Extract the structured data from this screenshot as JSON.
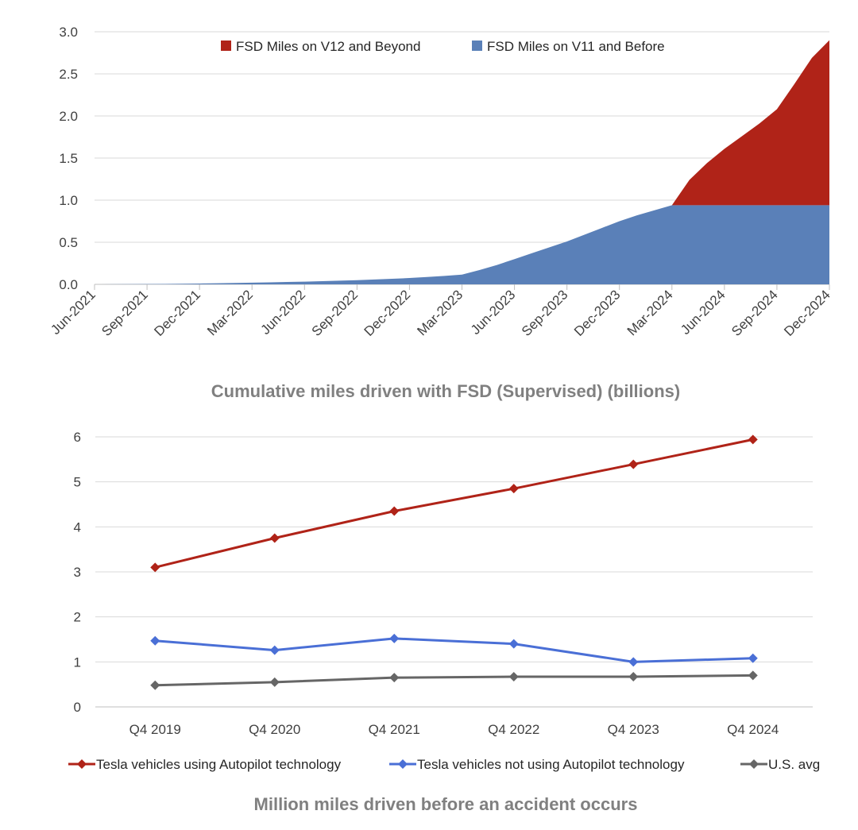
{
  "chart_data": [
    {
      "type": "area",
      "stacked": true,
      "title": "Cumulative miles driven with FSD (Supervised) (billions)",
      "ylim": [
        0,
        3.0
      ],
      "y_ticks": [
        "0.0",
        "0.5",
        "1.0",
        "1.5",
        "2.0",
        "2.5",
        "3.0"
      ],
      "x_tick_labels": [
        "Jun-2021",
        "Sep-2021",
        "Dec-2021",
        "Mar-2022",
        "Jun-2022",
        "Sep-2022",
        "Dec-2022",
        "Mar-2023",
        "Jun-2023",
        "Sep-2023",
        "Dec-2023",
        "Mar-2024",
        "Jun-2024",
        "Sep-2024",
        "Dec-2024"
      ],
      "x": [
        "Jun-2021",
        "Jul-2021",
        "Aug-2021",
        "Sep-2021",
        "Oct-2021",
        "Nov-2021",
        "Dec-2021",
        "Jan-2022",
        "Feb-2022",
        "Mar-2022",
        "Apr-2022",
        "May-2022",
        "Jun-2022",
        "Jul-2022",
        "Aug-2022",
        "Sep-2022",
        "Oct-2022",
        "Nov-2022",
        "Dec-2022",
        "Jan-2023",
        "Feb-2023",
        "Mar-2023",
        "Apr-2023",
        "May-2023",
        "Jun-2023",
        "Jul-2023",
        "Aug-2023",
        "Sep-2023",
        "Oct-2023",
        "Nov-2023",
        "Dec-2023",
        "Jan-2024",
        "Feb-2024",
        "Mar-2024",
        "Apr-2024",
        "May-2024",
        "Jun-2024",
        "Jul-2024",
        "Aug-2024",
        "Sep-2024",
        "Oct-2024",
        "Nov-2024",
        "Dec-2024"
      ],
      "legend_position": "top",
      "series": [
        {
          "name": "FSD Miles on V11 and Before",
          "color": "#5a80b8",
          "values": [
            0,
            0.001,
            0.002,
            0.003,
            0.005,
            0.007,
            0.01,
            0.013,
            0.016,
            0.02,
            0.024,
            0.028,
            0.032,
            0.038,
            0.044,
            0.05,
            0.058,
            0.066,
            0.075,
            0.087,
            0.1,
            0.115,
            0.17,
            0.23,
            0.3,
            0.37,
            0.44,
            0.51,
            0.59,
            0.67,
            0.75,
            0.82,
            0.88,
            0.94,
            0.94,
            0.94,
            0.94,
            0.94,
            0.94,
            0.94,
            0.94,
            0.94,
            0.94
          ]
        },
        {
          "name": "FSD Miles on V12 and Beyond",
          "color": "#b02318",
          "values": [
            0,
            0,
            0,
            0,
            0,
            0,
            0,
            0,
            0,
            0,
            0,
            0,
            0,
            0,
            0,
            0,
            0,
            0,
            0,
            0,
            0,
            0,
            0,
            0,
            0,
            0,
            0,
            0,
            0,
            0,
            0,
            0,
            0,
            0,
            0.3,
            0.5,
            0.67,
            0.82,
            0.97,
            1.14,
            1.44,
            1.75,
            1.96
          ]
        }
      ]
    },
    {
      "type": "line",
      "title": "Million miles driven before an accident occurs",
      "ylim": [
        0,
        6
      ],
      "y_ticks": [
        "0",
        "1",
        "2",
        "3",
        "4",
        "5",
        "6"
      ],
      "categories": [
        "Q4 2019",
        "Q4 2020",
        "Q4 2021",
        "Q4 2022",
        "Q4 2023",
        "Q4 2024"
      ],
      "legend_position": "bottom",
      "series": [
        {
          "name": "Tesla vehicles using Autopilot technology",
          "color": "#b02318",
          "values": [
            3.1,
            3.75,
            4.35,
            4.85,
            5.39,
            5.94
          ]
        },
        {
          "name": "Tesla vehicles not using Autopilot technology",
          "color": "#4a6fd6",
          "values": [
            1.47,
            1.26,
            1.52,
            1.4,
            1.0,
            1.08
          ]
        },
        {
          "name": "U.S. avg",
          "color": "#666666",
          "values": [
            0.48,
            0.55,
            0.65,
            0.67,
            0.67,
            0.7
          ]
        }
      ]
    }
  ]
}
